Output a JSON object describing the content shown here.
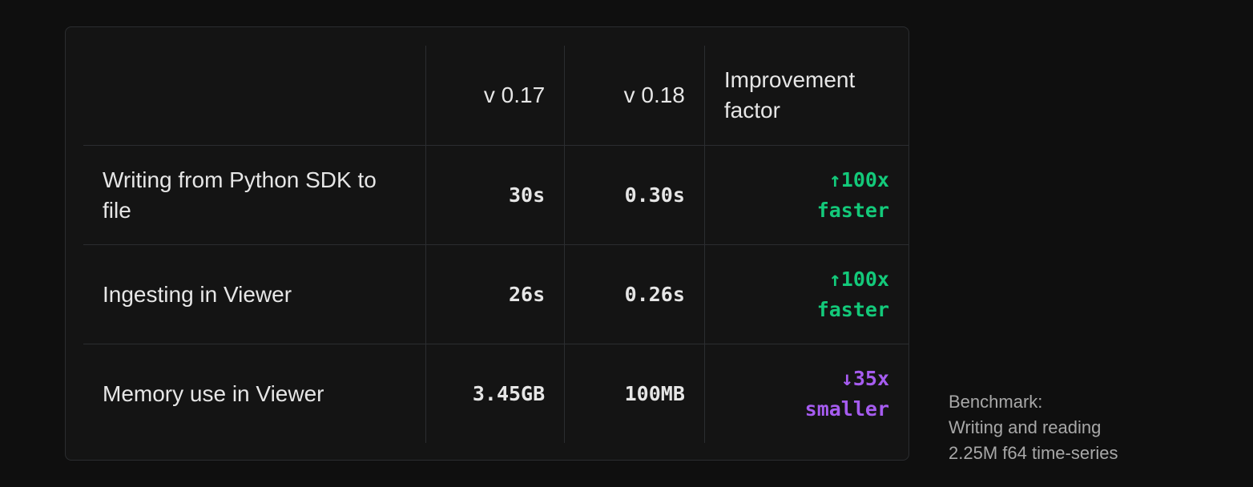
{
  "table": {
    "headers": [
      "",
      "v 0.17",
      "v 0.18",
      "Improvement factor"
    ],
    "rows": [
      {
        "label": "Writing from Python SDK to file",
        "v017": "30s",
        "v018": "0.30s",
        "arrow": "↑",
        "factor": "100x",
        "desc": "faster",
        "direction": "up"
      },
      {
        "label": "Ingesting in Viewer",
        "v017": "26s",
        "v018": "0.26s",
        "arrow": "↑",
        "factor": "100x",
        "desc": "faster",
        "direction": "up"
      },
      {
        "label": "Memory use in Viewer",
        "v017": "3.45GB",
        "v018": "100MB",
        "arrow": "↓",
        "factor": "35x",
        "desc": "smaller",
        "direction": "down"
      }
    ]
  },
  "note": {
    "line1": "Benchmark:",
    "line2": "Writing and reading",
    "line3": "2.25M f64 time-series"
  },
  "colors": {
    "faster": "#13c97a",
    "smaller": "#a65cf0",
    "background": "#0f0f0f",
    "card": "#141414"
  }
}
